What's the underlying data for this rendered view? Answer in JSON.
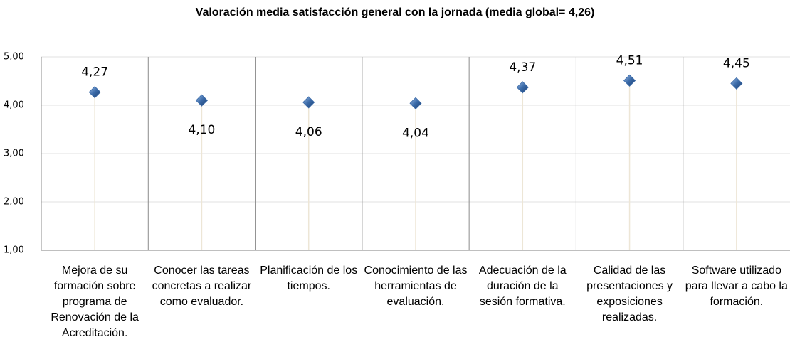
{
  "chart_data": {
    "type": "line_markers",
    "title": "Valoración media satisfacción general con la jornada (media global= 4,26)",
    "categories": [
      "Mejora de su formación sobre programa de Renovación de la Acreditación.",
      "Conocer las tareas concretas a realizar como evaluador.",
      "Planificación de los tiempos.",
      "Conocimiento de las herramientas de evaluación.",
      "Adecuación de la duración de la sesión formativa.",
      "Calidad de las presentaciones y exposiciones realizadas.",
      "Software utilizado para llevar a cabo la formación."
    ],
    "values": [
      4.27,
      4.1,
      4.06,
      4.04,
      4.37,
      4.51,
      4.45
    ],
    "value_labels": [
      "4,27",
      "4,10",
      "4,06",
      "4,04",
      "4,37",
      "4,51",
      "4,45"
    ],
    "color": "#3a6aa8",
    "ylim": [
      1,
      5
    ],
    "yticks": [
      {
        "value": 1,
        "label": "1,00"
      },
      {
        "value": 2,
        "label": "2,00"
      },
      {
        "value": 3,
        "label": "3,00"
      },
      {
        "value": 4,
        "label": "4,00"
      },
      {
        "value": 5,
        "label": "5,00"
      }
    ],
    "grid": true
  }
}
